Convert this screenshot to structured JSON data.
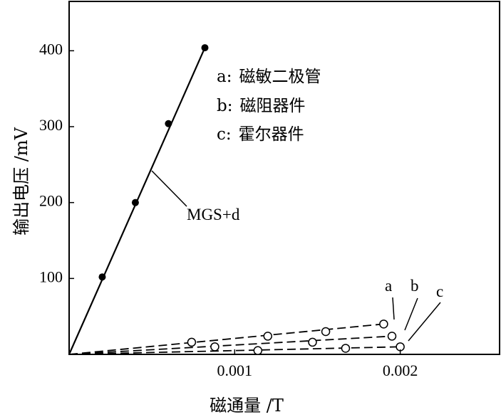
{
  "chart_data": {
    "type": "line",
    "xlabel": "磁通量 /T",
    "ylabel": "输出电压 /mV",
    "xlim": [
      0,
      0.0026
    ],
    "ylim": [
      0,
      465
    ],
    "xticks": [
      {
        "value": 0.001,
        "label": "0.001"
      },
      {
        "value": 0.002,
        "label": "0.002"
      }
    ],
    "yticks": [
      {
        "value": 100,
        "label": "100"
      },
      {
        "value": 200,
        "label": "200"
      },
      {
        "value": 300,
        "label": "300"
      },
      {
        "value": 400,
        "label": "400"
      }
    ],
    "grid": false,
    "series": [
      {
        "name": "MGS+d",
        "style": "solid",
        "marker": "filled-circle",
        "line_color": "#000000",
        "line_x": [
          0,
          0.00082
        ],
        "line_y": [
          0,
          404
        ],
        "x": [
          0.0002,
          0.0004,
          0.0006,
          0.00082
        ],
        "y": [
          102,
          200,
          304,
          404
        ]
      },
      {
        "name": "a",
        "style": "dashed",
        "marker": "open-circle",
        "line_color": "#000000",
        "line_x": [
          0,
          0.0019
        ],
        "line_y": [
          0,
          40
        ],
        "x": [
          0.00074,
          0.0012,
          0.00155,
          0.0019
        ],
        "y": [
          16,
          24,
          30,
          40
        ]
      },
      {
        "name": "b",
        "style": "dashed",
        "marker": "open-circle",
        "line_color": "#000000",
        "line_x": [
          0,
          0.00195
        ],
        "line_y": [
          0,
          24
        ],
        "x": [
          0.00088,
          0.00147,
          0.00195
        ],
        "y": [
          10,
          16,
          24
        ]
      },
      {
        "name": "c",
        "style": "dashed",
        "marker": "open-circle",
        "line_color": "#000000",
        "line_x": [
          0,
          0.002
        ],
        "line_y": [
          0,
          10
        ],
        "x": [
          0.00114,
          0.00167,
          0.002
        ],
        "y": [
          5,
          8,
          10
        ]
      }
    ],
    "legend": {
      "placement": "top-right",
      "entries": [
        {
          "key": "a:",
          "text": "磁敏二极管"
        },
        {
          "key": "b:",
          "text": "磁阻器件"
        },
        {
          "key": "c:",
          "text": "霍尔器件"
        }
      ]
    },
    "annotations": {
      "mgs_label": "MGS+d",
      "curve_labels": [
        "a",
        "b",
        "c"
      ]
    }
  }
}
